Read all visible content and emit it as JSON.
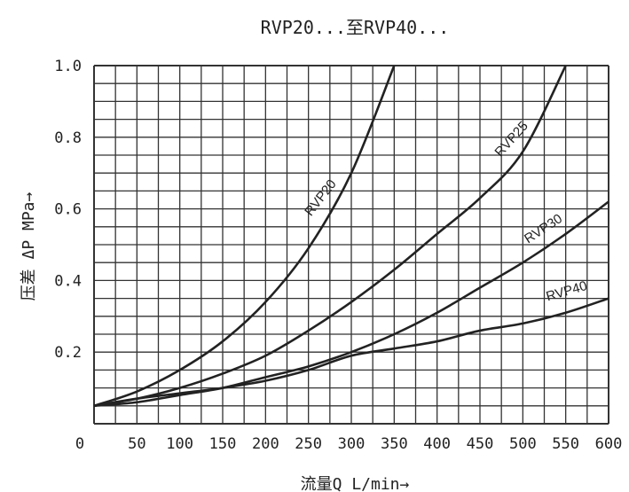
{
  "chart_data": {
    "type": "line",
    "title": "RVP20...至RVP40...",
    "xlabel": "流量Q  L/min→",
    "ylabel": "压差 ΔP MPa→",
    "xlim": [
      0,
      600
    ],
    "ylim": [
      0,
      1.0
    ],
    "x_ticks": [
      "0",
      "50",
      "100",
      "150",
      "200",
      "250",
      "300",
      "350",
      "400",
      "450",
      "500",
      "550",
      "600"
    ],
    "y_ticks": [
      "0.2",
      "0.4",
      "0.6",
      "0.8",
      "1.0"
    ],
    "grid": true,
    "series": [
      {
        "name": "RVP20",
        "x": [
          0,
          50,
          100,
          150,
          200,
          250,
          300,
          350
        ],
        "y": [
          0.05,
          0.09,
          0.15,
          0.23,
          0.34,
          0.49,
          0.7,
          1.0
        ]
      },
      {
        "name": "RVP25",
        "x": [
          0,
          50,
          100,
          150,
          200,
          250,
          300,
          350,
          400,
          450,
          500,
          550
        ],
        "y": [
          0.05,
          0.07,
          0.1,
          0.14,
          0.19,
          0.26,
          0.34,
          0.43,
          0.53,
          0.63,
          0.76,
          1.0
        ]
      },
      {
        "name": "RVP30",
        "x": [
          0,
          50,
          100,
          150,
          200,
          250,
          300,
          350,
          400,
          450,
          500,
          550,
          600
        ],
        "y": [
          0.05,
          0.06,
          0.08,
          0.1,
          0.13,
          0.16,
          0.2,
          0.25,
          0.31,
          0.38,
          0.45,
          0.53,
          0.62
        ]
      },
      {
        "name": "RVP40",
        "x": [
          0,
          50,
          100,
          150,
          200,
          250,
          300,
          350,
          400,
          450,
          500,
          550,
          600
        ],
        "y": [
          0.05,
          0.07,
          0.085,
          0.1,
          0.12,
          0.15,
          0.19,
          0.21,
          0.23,
          0.26,
          0.28,
          0.31,
          0.35
        ]
      }
    ]
  }
}
